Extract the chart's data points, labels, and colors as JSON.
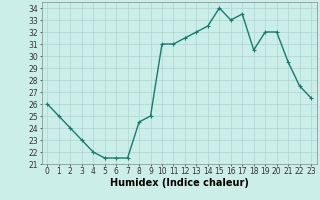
{
  "x": [
    0,
    1,
    2,
    3,
    4,
    5,
    6,
    7,
    8,
    9,
    10,
    11,
    12,
    13,
    14,
    15,
    16,
    17,
    18,
    19,
    20,
    21,
    22,
    23
  ],
  "y": [
    26,
    25,
    24,
    23,
    22,
    21.5,
    21.5,
    21.5,
    24.5,
    25,
    31,
    31,
    31.5,
    32,
    32.5,
    34,
    33,
    33.5,
    30.5,
    32,
    32,
    29.5,
    27.5,
    26.5
  ],
  "line_color": "#1a7a6e",
  "marker_color": "#1a7a6e",
  "bg_color": "#cceee8",
  "grid_color": "#aad8d2",
  "xlabel": "Humidex (Indice chaleur)",
  "ylim": [
    21,
    34.5
  ],
  "xlim": [
    -0.5,
    23.5
  ],
  "yticks": [
    21,
    22,
    23,
    24,
    25,
    26,
    27,
    28,
    29,
    30,
    31,
    32,
    33,
    34
  ],
  "xticks": [
    0,
    1,
    2,
    3,
    4,
    5,
    6,
    7,
    8,
    9,
    10,
    11,
    12,
    13,
    14,
    15,
    16,
    17,
    18,
    19,
    20,
    21,
    22,
    23
  ],
  "xlabel_fontsize": 7,
  "tick_fontsize": 5.5,
  "marker_size": 2.5,
  "line_width": 1.0
}
